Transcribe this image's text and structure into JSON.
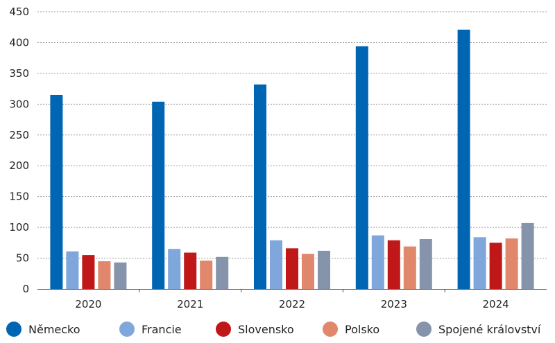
{
  "chart_data": {
    "type": "bar",
    "categories": [
      "2020",
      "2021",
      "2022",
      "2023",
      "2024"
    ],
    "series": [
      {
        "name": "Německo",
        "color": "#0066b3",
        "values": [
          315,
          304,
          332,
          394,
          421
        ]
      },
      {
        "name": "Francie",
        "color": "#7fa7dc",
        "values": [
          61,
          65,
          79,
          87,
          84
        ]
      },
      {
        "name": "Slovensko",
        "color": "#c01818",
        "values": [
          55,
          59,
          66,
          79,
          75
        ]
      },
      {
        "name": "Polsko",
        "color": "#e0876c",
        "values": [
          45,
          46,
          57,
          69,
          82
        ]
      },
      {
        "name": "Spojené království",
        "color": "#8594ab",
        "values": [
          43,
          52,
          62,
          81,
          107
        ]
      }
    ],
    "yticks": [
      0,
      50,
      100,
      150,
      200,
      250,
      300,
      350,
      400,
      450
    ],
    "ylim": [
      0,
      450
    ],
    "grid": "horizontal dashed",
    "legend_position": "bottom"
  }
}
